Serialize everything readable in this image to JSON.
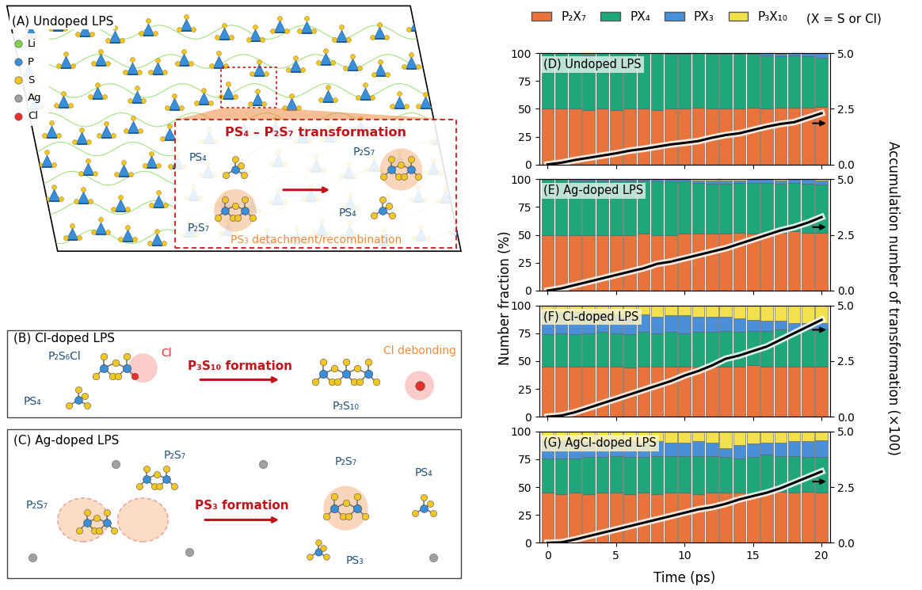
{
  "figure": {
    "xlabel": "Time (ps)",
    "ylabel": "Number fraction (%)",
    "y2label": "Accumulation number of transformation (×100)",
    "legend": "upper left",
    "legend_note": "(X = S or Cl)"
  },
  "diagram": {
    "A": {
      "label": "(A)",
      "title": "Undoped LPS",
      "elements": [
        {
          "name": "Li",
          "color": "#7cd64b"
        },
        {
          "name": "P",
          "color": "#3a8fd9"
        },
        {
          "name": "S",
          "color": "#f3c623"
        },
        {
          "name": "Ag",
          "color": "#a0a0a0"
        },
        {
          "name": "Cl",
          "color": "#e8302a"
        }
      ],
      "inset_title": "PS₄ – P₂S₇ transformation",
      "left": [
        "PS₄",
        "P₂S₇"
      ],
      "right": [
        "P₂S₇",
        "PS₄"
      ],
      "note": "PS₃ detachment/recombination"
    },
    "B": {
      "label": "(B)",
      "title": "Cl-doped LPS",
      "left": [
        "P₂S₆Cl",
        "PS₄"
      ],
      "atom": "Cl",
      "process": "P₃S₁₀ formation",
      "right": [
        "P₃S₁₀"
      ],
      "note": "Cl debonding"
    },
    "C": {
      "label": "(C)",
      "title": "Ag-doped LPS",
      "left": [
        "P₂S₇",
        "P₂S₇"
      ],
      "process": "PS₃ formation",
      "right": [
        "P₂S₇",
        "PS₃",
        "PS₄"
      ]
    }
  },
  "chart_data": [
    {
      "type": "bar",
      "title": "(D) Undoped LPS",
      "stacked": true,
      "tick_labels": "y",
      "x": [
        0,
        1,
        2,
        3,
        4,
        5,
        6,
        7,
        8,
        9,
        10,
        11,
        12,
        13,
        14,
        15,
        16,
        17,
        18,
        19,
        20
      ],
      "xlim": [
        -0.6,
        20.6
      ],
      "xticks": [
        0,
        5,
        10,
        15,
        20
      ],
      "ylim": [
        0,
        100
      ],
      "yticks": [
        0,
        25,
        50,
        75,
        100
      ],
      "y2lim": [
        0,
        5
      ],
      "y2ticks": [
        {
          "value": 0,
          "label": "0.0"
        },
        {
          "value": 2.5,
          "label": "2.5"
        },
        {
          "value": 5,
          "label": "5.0"
        }
      ],
      "series": [
        {
          "name": "P₂X₇",
          "color": "#e8743b",
          "values": [
            50,
            50,
            50,
            49,
            50,
            49,
            50,
            50,
            49,
            50,
            50,
            51,
            50,
            50,
            50,
            51,
            50,
            51,
            51,
            51,
            52
          ]
        },
        {
          "name": "PX₄",
          "color": "#1fa67a",
          "values": [
            50,
            50,
            50,
            49,
            50,
            51,
            50,
            50,
            51,
            49,
            49,
            49,
            49,
            49,
            49,
            48,
            48,
            46,
            47,
            46,
            44
          ]
        },
        {
          "name": "PX₃",
          "color": "#4a90d9",
          "values": [
            0,
            0,
            0,
            1,
            0,
            0,
            0,
            0,
            0,
            1,
            1,
            0,
            1,
            1,
            1,
            1,
            2,
            2,
            2,
            3,
            4
          ]
        },
        {
          "name": "P₃X₁₀",
          "color": "#f2e14c",
          "values": [
            0,
            0,
            0,
            1,
            0,
            0,
            0,
            0,
            0,
            0,
            0,
            0,
            0,
            0,
            0,
            0,
            0,
            1,
            0,
            0,
            0
          ]
        },
        {
          "type": "line",
          "axis": "y2",
          "color": "#000000",
          "x": [
            0,
            1,
            2,
            3,
            4,
            5,
            6,
            7,
            8,
            9,
            10,
            11,
            12,
            13,
            14,
            15,
            16,
            17,
            18,
            19,
            20
          ],
          "values": [
            0,
            0.08,
            0.2,
            0.3,
            0.4,
            0.5,
            0.62,
            0.7,
            0.8,
            0.9,
            0.97,
            1.05,
            1.2,
            1.32,
            1.4,
            1.55,
            1.7,
            1.82,
            1.9,
            2.1,
            2.3
          ]
        }
      ]
    },
    {
      "type": "bar",
      "title": "(E) Ag-doped LPS",
      "stacked": true,
      "tick_labels": "y",
      "x": [
        0,
        1,
        2,
        3,
        4,
        5,
        6,
        7,
        8,
        9,
        10,
        11,
        12,
        13,
        14,
        15,
        16,
        17,
        18,
        19,
        20
      ],
      "xlim": [
        -0.6,
        20.6
      ],
      "xticks": [
        0,
        5,
        10,
        15,
        20
      ],
      "ylim": [
        0,
        100
      ],
      "yticks": [
        0,
        25,
        50,
        75,
        100
      ],
      "y2lim": [
        0,
        5
      ],
      "y2ticks": [
        {
          "value": 0,
          "label": "0.0"
        },
        {
          "value": 2.5,
          "label": "2.5"
        },
        {
          "value": 5,
          "label": "5.0"
        }
      ],
      "series": [
        {
          "name": "P₂X₇",
          "color": "#e8743b",
          "values": [
            50,
            50,
            50,
            50,
            50,
            50,
            50,
            51,
            50,
            50,
            51,
            51,
            51,
            51,
            52,
            51,
            52,
            52,
            53,
            52,
            52
          ]
        },
        {
          "name": "PX₄",
          "color": "#1fa67a",
          "values": [
            50,
            50,
            49,
            49,
            49,
            49,
            49,
            48,
            48,
            48,
            47,
            46,
            45,
            45,
            45,
            46,
            45,
            44,
            44,
            44,
            43
          ]
        },
        {
          "name": "PX₃",
          "color": "#4a90d9",
          "values": [
            0,
            0,
            1,
            1,
            1,
            1,
            1,
            1,
            2,
            2,
            2,
            2,
            3,
            3,
            2,
            3,
            3,
            3,
            3,
            4,
            4
          ]
        },
        {
          "name": "P₃X₁₀",
          "color": "#f2e14c",
          "values": [
            0,
            0,
            0,
            0,
            0,
            0,
            0,
            0,
            0,
            0,
            0,
            1,
            1,
            1,
            1,
            0,
            0,
            1,
            0,
            0,
            1
          ]
        },
        {
          "type": "line",
          "axis": "y2",
          "color": "#000000",
          "x": [
            0,
            1,
            2,
            3,
            4,
            5,
            6,
            7,
            8,
            9,
            10,
            11,
            12,
            13,
            14,
            15,
            16,
            17,
            18,
            19,
            20
          ],
          "values": [
            0,
            0.1,
            0.25,
            0.4,
            0.55,
            0.7,
            0.85,
            1.0,
            1.2,
            1.3,
            1.45,
            1.6,
            1.75,
            1.9,
            2.1,
            2.3,
            2.5,
            2.7,
            2.85,
            3.05,
            3.3
          ]
        }
      ]
    },
    {
      "type": "bar",
      "title": "(F) Cl-doped LPS",
      "stacked": true,
      "tick_labels": "y",
      "x": [
        0,
        1,
        2,
        3,
        4,
        5,
        6,
        7,
        8,
        9,
        10,
        11,
        12,
        13,
        14,
        15,
        16,
        17,
        18,
        19,
        20
      ],
      "xlim": [
        -0.6,
        20.6
      ],
      "xticks": [
        0,
        5,
        10,
        15,
        20
      ],
      "ylim": [
        0,
        100
      ],
      "yticks": [
        0,
        25,
        50,
        75,
        100
      ],
      "y2lim": [
        0,
        5
      ],
      "y2ticks": [
        {
          "value": 0,
          "label": "0.0"
        },
        {
          "value": 2.5,
          "label": "2.5"
        },
        {
          "value": 5,
          "label": "5.0"
        }
      ],
      "series": [
        {
          "name": "P₂X₇",
          "color": "#e8743b",
          "values": [
            45,
            45,
            45,
            45,
            45,
            45,
            44,
            45,
            45,
            45,
            45,
            45,
            45,
            45,
            45,
            46,
            45,
            45,
            45,
            45,
            45
          ]
        },
        {
          "name": "PX₄",
          "color": "#1fa67a",
          "values": [
            29,
            30,
            29,
            30,
            31,
            30,
            30,
            31,
            30,
            31,
            30,
            31,
            31,
            32,
            31,
            31,
            32,
            33,
            32,
            33,
            34
          ]
        },
        {
          "name": "PX₃",
          "color": "#4a90d9",
          "values": [
            21,
            19,
            20,
            18,
            17,
            17,
            16,
            16,
            15,
            15,
            16,
            14,
            14,
            13,
            12,
            10,
            9,
            8,
            7,
            6,
            5
          ]
        },
        {
          "name": "P₃X₁₀",
          "color": "#f2e14c",
          "values": [
            5,
            6,
            6,
            7,
            7,
            8,
            10,
            8,
            10,
            9,
            9,
            10,
            10,
            10,
            12,
            13,
            14,
            14,
            16,
            16,
            16
          ]
        },
        {
          "type": "line",
          "axis": "y2",
          "color": "#000000",
          "x": [
            0,
            1,
            2,
            3,
            4,
            5,
            6,
            7,
            8,
            9,
            10,
            11,
            12,
            13,
            14,
            15,
            16,
            17,
            18,
            19,
            20
          ],
          "values": [
            0,
            0.05,
            0.2,
            0.4,
            0.6,
            0.8,
            1.0,
            1.2,
            1.4,
            1.6,
            1.85,
            2.05,
            2.3,
            2.6,
            2.75,
            2.95,
            3.15,
            3.45,
            3.75,
            4.05,
            4.35
          ]
        }
      ]
    },
    {
      "type": "bar",
      "title": "(G) AgCl-doped LPS",
      "stacked": true,
      "x": [
        0,
        1,
        2,
        3,
        4,
        5,
        6,
        7,
        8,
        9,
        10,
        11,
        12,
        13,
        14,
        15,
        16,
        17,
        18,
        19,
        20
      ],
      "xlim": [
        -0.6,
        20.6
      ],
      "xticks": [
        0,
        5,
        10,
        15,
        20
      ],
      "ylim": [
        0,
        100
      ],
      "yticks": [
        0,
        25,
        50,
        75,
        100
      ],
      "y2lim": [
        0,
        5
      ],
      "y2ticks": [
        {
          "value": 0,
          "label": "0.0"
        },
        {
          "value": 2.5,
          "label": "2.5"
        },
        {
          "value": 5,
          "label": "5.0"
        }
      ],
      "series": [
        {
          "name": "P₂X₇",
          "color": "#e8743b",
          "values": [
            45,
            44,
            45,
            44,
            45,
            45,
            44,
            45,
            44,
            45,
            45,
            44,
            45,
            45,
            45,
            44,
            45,
            46,
            45,
            46,
            45
          ]
        },
        {
          "name": "PX₄",
          "color": "#1fa67a",
          "values": [
            31,
            32,
            31,
            33,
            32,
            33,
            33,
            32,
            34,
            33,
            33,
            34,
            33,
            32,
            31,
            33,
            34,
            32,
            33,
            31,
            32
          ]
        },
        {
          "name": "PX₃",
          "color": "#4a90d9",
          "values": [
            16,
            16,
            15,
            14,
            14,
            13,
            14,
            13,
            13,
            12,
            12,
            13,
            12,
            8,
            12,
            12,
            11,
            12,
            13,
            14,
            15
          ]
        },
        {
          "name": "P₃X₁₀",
          "color": "#f2e14c",
          "values": [
            8,
            8,
            9,
            9,
            9,
            9,
            9,
            10,
            9,
            10,
            10,
            9,
            10,
            15,
            12,
            11,
            10,
            10,
            9,
            9,
            8
          ]
        },
        {
          "type": "line",
          "axis": "y2",
          "color": "#000000",
          "x": [
            0,
            1,
            2,
            3,
            4,
            5,
            6,
            7,
            8,
            9,
            10,
            11,
            12,
            13,
            14,
            15,
            16,
            17,
            18,
            19,
            20
          ],
          "values": [
            0,
            0.02,
            0.15,
            0.3,
            0.45,
            0.6,
            0.75,
            0.9,
            1.05,
            1.2,
            1.35,
            1.5,
            1.6,
            1.75,
            1.95,
            2.1,
            2.25,
            2.45,
            2.7,
            2.95,
            3.2
          ]
        }
      ]
    }
  ]
}
